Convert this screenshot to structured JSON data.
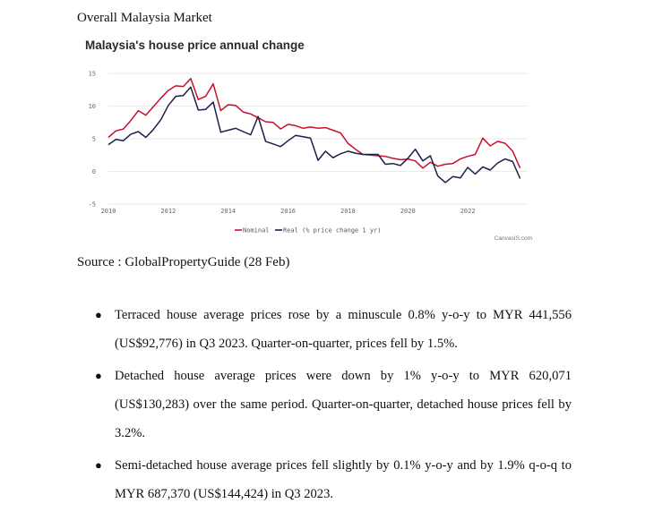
{
  "document": {
    "section_title": "Overall Malaysia Market",
    "source": "Source : GlobalPropertyGuide (28 Feb)",
    "bullets": [
      "Terraced house average prices rose by a minuscule 0.8% y-o-y to MYR 441,556 (US$92,776) in Q3 2023. Quarter-on-quarter, prices fell by 1.5%.",
      "Detached house average prices were down by 1% y-o-y to MYR 620,071 (US$130,283) over the same period. Quarter-on-quarter, detached house prices fell by 3.2%.",
      "Semi-detached house average prices fell slightly by 0.1% y-o-y and by 1.9% q-o-q to MYR 687,370 (US$144,424) in Q3 2023."
    ]
  },
  "chart_data": {
    "type": "line",
    "title": "Malaysia's house price annual change",
    "legend_note": "(% price change 1 yr)",
    "credit": "CanvasIS.com",
    "xlim": [
      2010,
      2024
    ],
    "ylim": [
      -5,
      15
    ],
    "x_ticks": [
      "2010",
      "2012",
      "2014",
      "2016",
      "2018",
      "2020",
      "2022"
    ],
    "y_ticks": [
      "-5",
      "0",
      "5",
      "10",
      "15"
    ],
    "grid": true,
    "legend_position": "bottom",
    "series": [
      {
        "name": "Nominal",
        "color": "#c8102e",
        "x": [
          2010.0,
          2010.25,
          2010.5,
          2010.75,
          2011.0,
          2011.25,
          2011.5,
          2011.75,
          2012.0,
          2012.25,
          2012.5,
          2012.75,
          2013.0,
          2013.25,
          2013.5,
          2013.75,
          2014.0,
          2014.25,
          2014.5,
          2014.75,
          2015.0,
          2015.25,
          2015.5,
          2015.75,
          2016.0,
          2016.25,
          2016.5,
          2016.75,
          2017.0,
          2017.25,
          2017.5,
          2017.75,
          2018.0,
          2018.25,
          2018.5,
          2018.75,
          2019.0,
          2019.25,
          2019.5,
          2019.75,
          2020.0,
          2020.25,
          2020.5,
          2020.75,
          2021.0,
          2021.25,
          2021.5,
          2021.75,
          2022.0,
          2022.25,
          2022.5,
          2022.75,
          2023.0,
          2023.25,
          2023.5,
          2023.75
        ],
        "values": [
          5.2,
          6.2,
          6.5,
          7.8,
          9.3,
          8.6,
          9.9,
          11.2,
          12.4,
          13.1,
          13.0,
          14.2,
          11.0,
          11.5,
          13.4,
          9.3,
          10.2,
          10.1,
          9.1,
          8.8,
          8.2,
          7.6,
          7.5,
          6.5,
          7.2,
          7.0,
          6.6,
          6.8,
          6.6,
          6.7,
          6.3,
          5.9,
          4.3,
          3.4,
          2.6,
          2.5,
          2.4,
          2.3,
          2.0,
          1.8,
          1.9,
          1.6,
          0.5,
          1.4,
          0.8,
          1.1,
          1.2,
          1.9,
          2.3,
          2.6,
          5.1,
          3.9,
          4.6,
          4.3,
          3.1,
          0.5
        ]
      },
      {
        "name": "Real",
        "color": "#1c1f4a",
        "x": [
          2010.0,
          2010.25,
          2010.5,
          2010.75,
          2011.0,
          2011.25,
          2011.5,
          2011.75,
          2012.0,
          2012.25,
          2012.5,
          2012.75,
          2013.0,
          2013.25,
          2013.5,
          2013.75,
          2014.0,
          2014.25,
          2014.5,
          2014.75,
          2015.0,
          2015.25,
          2015.5,
          2015.75,
          2016.0,
          2016.25,
          2016.5,
          2016.75,
          2017.0,
          2017.25,
          2017.5,
          2017.75,
          2018.0,
          2018.25,
          2018.5,
          2018.75,
          2019.0,
          2019.25,
          2019.5,
          2019.75,
          2020.0,
          2020.25,
          2020.5,
          2020.75,
          2021.0,
          2021.25,
          2021.5,
          2021.75,
          2022.0,
          2022.25,
          2022.5,
          2022.75,
          2023.0,
          2023.25,
          2023.5,
          2023.75
        ],
        "values": [
          4.1,
          4.9,
          4.7,
          5.7,
          6.1,
          5.2,
          6.4,
          7.9,
          10.1,
          11.5,
          11.6,
          12.9,
          9.4,
          9.5,
          10.6,
          6.0,
          6.3,
          6.6,
          6.1,
          5.6,
          8.4,
          4.6,
          4.2,
          3.8,
          4.7,
          5.5,
          5.3,
          5.1,
          1.7,
          3.1,
          2.1,
          2.7,
          3.1,
          2.8,
          2.6,
          2.6,
          2.6,
          1.1,
          1.2,
          0.9,
          2.0,
          3.4,
          1.6,
          2.4,
          -0.7,
          -1.7,
          -0.8,
          -1.0,
          0.6,
          -0.4,
          0.7,
          0.2,
          1.3,
          1.9,
          1.5,
          -1.1
        ]
      }
    ]
  }
}
